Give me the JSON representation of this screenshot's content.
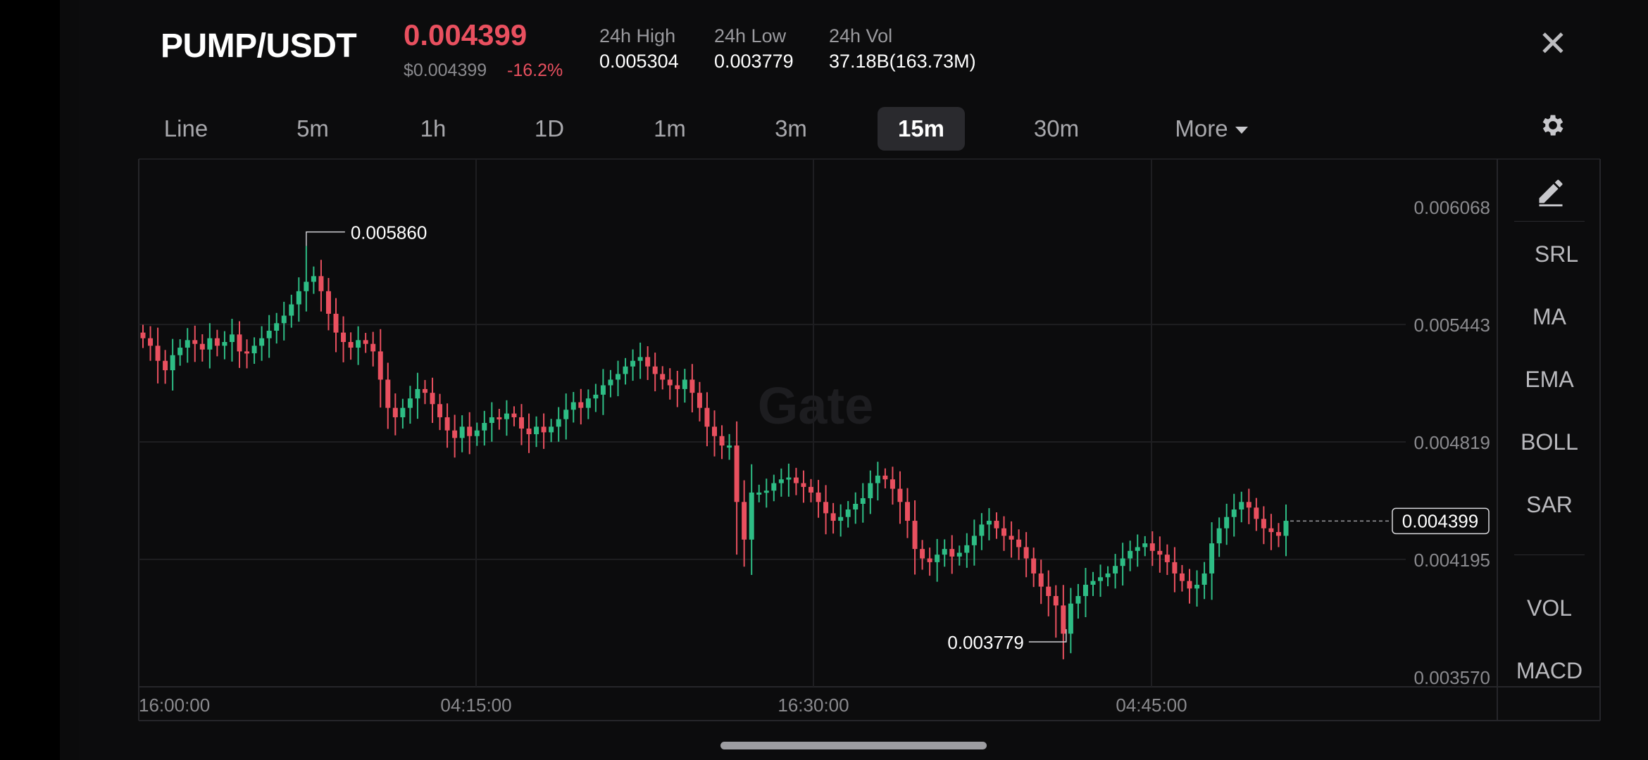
{
  "header": {
    "pair": "PUMP/USDT",
    "price": "0.004399",
    "usd_price": "$0.004399",
    "change": "-16.2%",
    "stats": [
      {
        "label": "24h High",
        "value": "0.005304"
      },
      {
        "label": "24h Low",
        "value": "0.003779"
      },
      {
        "label": "24h Vol",
        "value": "37.18B(163.73M)"
      }
    ],
    "close_icon": "close-icon"
  },
  "tabs": [
    {
      "label": "Line",
      "active": false
    },
    {
      "label": "5m",
      "active": false
    },
    {
      "label": "1h",
      "active": false
    },
    {
      "label": "1D",
      "active": false
    },
    {
      "label": "1m",
      "active": false
    },
    {
      "label": "3m",
      "active": false
    },
    {
      "label": "15m",
      "active": true
    },
    {
      "label": "30m",
      "active": false
    },
    {
      "label": "More",
      "active": false
    }
  ],
  "settings_icon": "gear-icon",
  "right_tools": {
    "pencil_icon": "pencil-icon",
    "items": [
      "SRL",
      "MA",
      "EMA",
      "BOLL",
      "SAR"
    ],
    "items2": [
      "VOL",
      "MACD"
    ]
  },
  "watermark": "Gate",
  "colors": {
    "up": "#2ebd85",
    "down": "#e9505f",
    "grid": "#1e1e21",
    "axis_text": "#8a8a8e"
  },
  "chart_data": {
    "type": "candlestick",
    "yticks": [
      "0.006068",
      "0.005443",
      "0.004819",
      "0.004195",
      "0.003570"
    ],
    "xticks": [
      "16:00:00",
      "04:15:00",
      "16:30:00",
      "04:45:00"
    ],
    "last_price_label": "0.004399",
    "high_marker": "0.005860",
    "low_marker": "0.003779",
    "ylim": [
      0.00357,
      0.006068
    ],
    "close_series": [
      0.00537,
      0.00533,
      0.00525,
      0.0052,
      0.00528,
      0.00532,
      0.00536,
      0.00534,
      0.00531,
      0.00537,
      0.00533,
      0.00535,
      0.00539,
      0.0053,
      0.00529,
      0.00533,
      0.00537,
      0.00541,
      0.00545,
      0.00549,
      0.00555,
      0.00562,
      0.00567,
      0.0057,
      0.00562,
      0.0055,
      0.0054,
      0.00535,
      0.00532,
      0.00536,
      0.00534,
      0.0053,
      0.00515,
      0.005,
      0.00495,
      0.005,
      0.00505,
      0.0051,
      0.00508,
      0.00502,
      0.00495,
      0.00488,
      0.00484,
      0.0049,
      0.00485,
      0.00488,
      0.00492,
      0.00495,
      0.00494,
      0.00497,
      0.00495,
      0.00489,
      0.00486,
      0.0049,
      0.00487,
      0.0049,
      0.00494,
      0.00499,
      0.00503,
      0.005,
      0.00505,
      0.00507,
      0.00512,
      0.00515,
      0.00518,
      0.00522,
      0.00525,
      0.00527,
      0.00522,
      0.00518,
      0.00515,
      0.00512,
      0.0051,
      0.00515,
      0.00508,
      0.005,
      0.0049,
      0.00485,
      0.0048,
      0.0048,
      0.0045,
      0.0043,
      0.00455,
      0.00455,
      0.00456,
      0.0046,
      0.00462,
      0.00463,
      0.0046,
      0.00458,
      0.00455,
      0.0045,
      0.00444,
      0.0044,
      0.00442,
      0.00446,
      0.00449,
      0.00452,
      0.0046,
      0.00464,
      0.00462,
      0.00457,
      0.0045,
      0.0044,
      0.00425,
      0.0042,
      0.00418,
      0.00422,
      0.00425,
      0.00421,
      0.00423,
      0.00427,
      0.00432,
      0.00438,
      0.0044,
      0.00436,
      0.00432,
      0.0043,
      0.00426,
      0.0042,
      0.00412,
      0.00405,
      0.004,
      0.00395,
      0.0038,
      0.00396,
      0.004,
      0.00406,
      0.00408,
      0.0041,
      0.00412,
      0.00416,
      0.0042,
      0.00424,
      0.00426,
      0.00428,
      0.00424,
      0.00422,
      0.00418,
      0.00412,
      0.00408,
      0.00404,
      0.00406,
      0.00412,
      0.00428,
      0.00436,
      0.00442,
      0.00446,
      0.0045,
      0.00447,
      0.00441,
      0.00436,
      0.00434,
      0.00432,
      0.0044
    ]
  }
}
